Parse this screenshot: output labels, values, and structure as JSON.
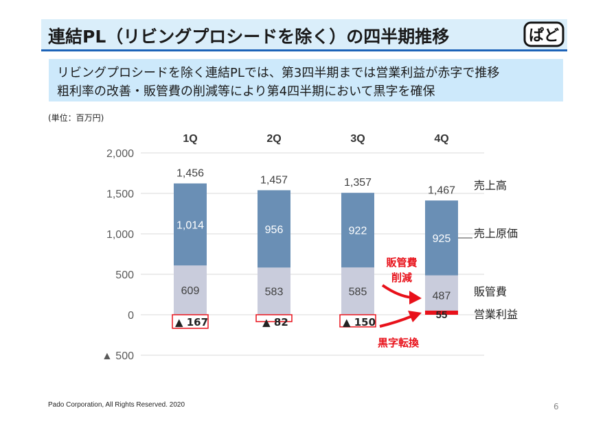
{
  "header": {
    "title": "連結PL（リビングプロシードを除く）の四半期推移",
    "logo_text": "ぱど"
  },
  "summary": {
    "line1": "リビングプロシードを除く連結PLでは、第3四半期までは営業利益が赤字で推移",
    "line2": "粗利率の改善・販管費の削減等により第4四半期において黒字を確保"
  },
  "unit_label": "(単位：百万円)",
  "footer": {
    "copyright": "Pado Corporation, All Rights Reserved. 2020",
    "page_number": "6"
  },
  "colors": {
    "header_bg": "#daeefa",
    "header_border": "#1d63b8",
    "summary_bg": "#cde9fb",
    "cost_of_sales": "#6a8fb5",
    "sga": "#c9ccdc",
    "negative_box": "#e8111a",
    "profit_bar": "#e8111a",
    "annotation": "#e8111a"
  },
  "chart_data": {
    "type": "bar",
    "categories": [
      "1Q",
      "2Q",
      "3Q",
      "4Q"
    ],
    "ylim": [
      -500,
      2000
    ],
    "y_ticks": [
      {
        "value": 2000,
        "label": "2,000"
      },
      {
        "value": 1500,
        "label": "1,500"
      },
      {
        "value": 1000,
        "label": "1,000"
      },
      {
        "value": 500,
        "label": "500"
      },
      {
        "value": 0,
        "label": "0"
      },
      {
        "value": -500,
        "label": "▲ 500"
      }
    ],
    "grid": true,
    "sales": {
      "values": [
        1456,
        1457,
        1357,
        1467
      ],
      "labels": [
        "1,456",
        "1,457",
        "1,357",
        "1,467"
      ]
    },
    "series": [
      {
        "name": "売上原価",
        "values": [
          1014,
          956,
          922,
          925
        ],
        "labels": [
          "1,014",
          "956",
          "922",
          "925"
        ]
      },
      {
        "name": "販管費",
        "values": [
          609,
          583,
          585,
          487
        ],
        "labels": [
          "609",
          "583",
          "585",
          "487"
        ]
      },
      {
        "name": "営業利益",
        "values": [
          -167,
          -82,
          -150,
          55
        ],
        "labels": [
          "▲ 167",
          "▲ 82",
          "▲ 150",
          "55"
        ]
      }
    ],
    "legend_labels": [
      "売上高",
      "売上原価",
      "販管費",
      "営業利益"
    ],
    "annotations": [
      {
        "text_lines": [
          "販管費",
          "削減"
        ],
        "target": "4Q 販管費"
      },
      {
        "text_lines": [
          "黒字転換"
        ],
        "target": "4Q 営業利益"
      }
    ]
  }
}
